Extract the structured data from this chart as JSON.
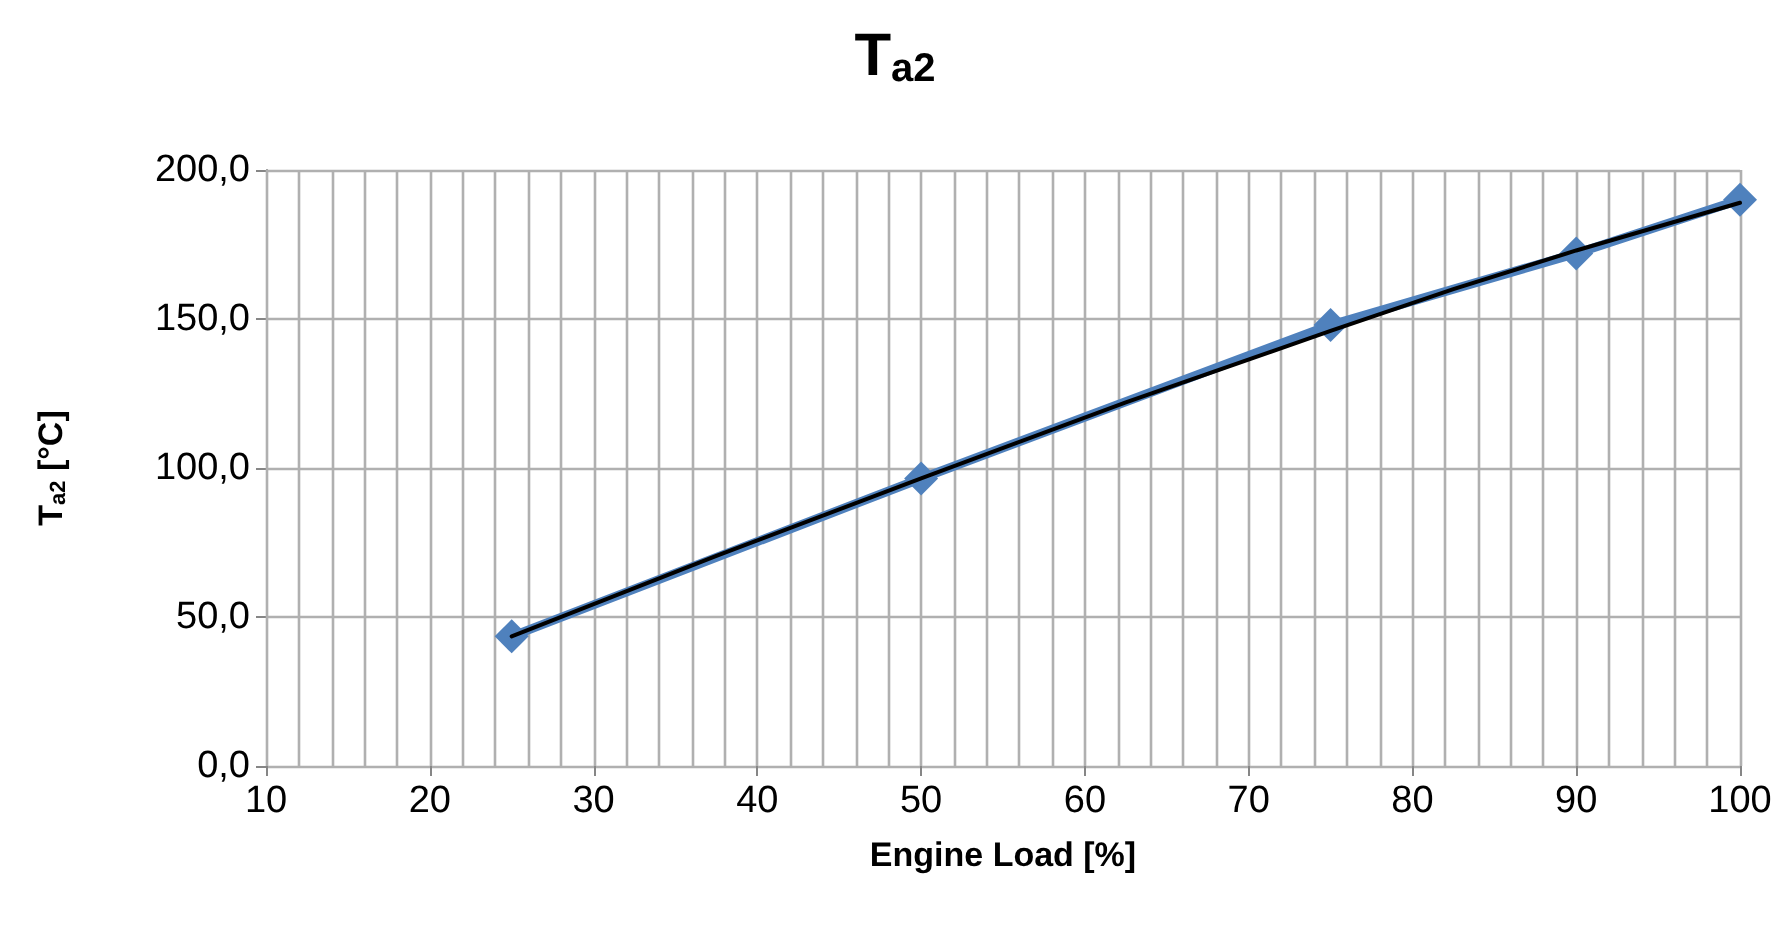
{
  "chart_data": {
    "type": "line",
    "title": "T$_{a2}$",
    "xlabel": "Engine Load [%]",
    "ylabel": "T$_{a2}$ [°C]",
    "x": [
      25,
      50,
      75,
      90,
      100
    ],
    "series": [
      {
        "color": "#4f81bd",
        "values": [
          43.5,
          96.5,
          148,
          172,
          190
        ],
        "marker": "diamond"
      },
      {
        "color": "#000000",
        "x": [
          25,
          37.5,
          50,
          62.5,
          75,
          82.5,
          90,
          100
        ],
        "values": [
          43.5,
          70.5,
          96.5,
          122,
          146,
          160,
          173,
          189
        ],
        "marker": "none"
      }
    ],
    "xlim": [
      10,
      100
    ],
    "xticks": [
      10,
      {
        "value": 12,
        "label": null
      },
      {
        "value": 14,
        "label": null
      },
      {
        "value": 16,
        "label": null
      },
      {
        "value": 18,
        "label": null
      },
      20,
      {
        "value": 22,
        "label": null
      },
      {
        "value": 24,
        "label": null
      },
      {
        "value": 26,
        "label": null
      },
      {
        "value": 28,
        "label": null
      },
      30,
      {
        "value": 32,
        "label": null
      },
      {
        "value": 34,
        "label": null
      },
      {
        "value": 36,
        "label": null
      },
      {
        "value": 38,
        "label": null
      },
      40,
      {
        "value": 42,
        "label": null
      },
      {
        "value": 44,
        "label": null
      },
      {
        "value": 46,
        "label": null
      },
      {
        "value": 48,
        "label": null
      },
      50,
      {
        "value": 52,
        "label": null
      },
      {
        "value": 54,
        "label": null
      },
      {
        "value": 56,
        "label": null
      },
      {
        "value": 58,
        "label": null
      },
      60,
      {
        "value": 62,
        "label": null
      },
      {
        "value": 64,
        "label": null
      },
      {
        "value": 66,
        "label": null
      },
      {
        "value": 68,
        "label": null
      },
      70,
      {
        "value": 72,
        "label": null
      },
      {
        "value": 74,
        "label": null
      },
      {
        "value": 76,
        "label": null
      },
      {
        "value": 78,
        "label": null
      },
      80,
      {
        "value": 82,
        "label": null
      },
      {
        "value": 84,
        "label": null
      },
      {
        "value": 86,
        "label": null
      },
      {
        "value": 88,
        "label": null
      },
      90,
      {
        "value": 92,
        "label": null
      },
      {
        "value": 94,
        "label": null
      },
      {
        "value": 96,
        "label": null
      },
      {
        "value": 98,
        "label": null
      },
      100
    ],
    "ylim": [
      0,
      200
    ],
    "yticks": [
      {
        "value": 0,
        "label": "0,0"
      },
      {
        "value": 50,
        "label": "50,0"
      },
      {
        "value": 100,
        "label": "100,0"
      },
      {
        "value": 150,
        "label": "150,0"
      },
      {
        "value": 200,
        "label": "200,0"
      }
    ],
    "grid": true,
    "line_style": "solid"
  }
}
